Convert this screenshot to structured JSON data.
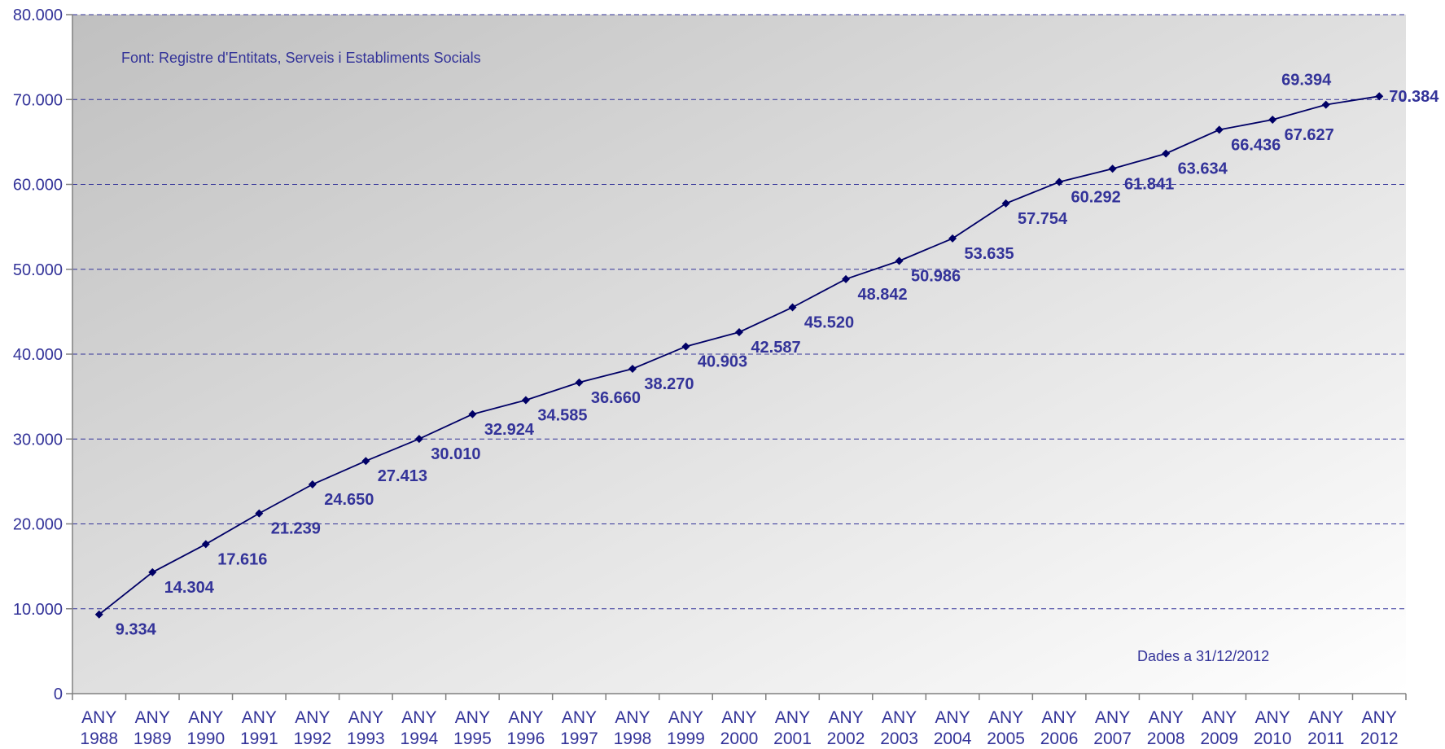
{
  "chart_data": {
    "type": "line",
    "source_note": "Font: Registre d'Entitats, Serveis i Establiments Socials",
    "date_note": "Dades a 31/12/2012",
    "categories": [
      [
        "ANY",
        "1988"
      ],
      [
        "ANY",
        "1989"
      ],
      [
        "ANY",
        "1990"
      ],
      [
        "ANY",
        "1991"
      ],
      [
        "ANY",
        "1992"
      ],
      [
        "ANY",
        "1993"
      ],
      [
        "ANY",
        "1994"
      ],
      [
        "ANY",
        "1995"
      ],
      [
        "ANY",
        "1996"
      ],
      [
        "ANY",
        "1997"
      ],
      [
        "ANY",
        "1998"
      ],
      [
        "ANY",
        "1999"
      ],
      [
        "ANY",
        "2000"
      ],
      [
        "ANY",
        "2001"
      ],
      [
        "ANY",
        "2002"
      ],
      [
        "ANY",
        "2003"
      ],
      [
        "ANY",
        "2004"
      ],
      [
        "ANY",
        "2005"
      ],
      [
        "ANY",
        "2006"
      ],
      [
        "ANY",
        "2007"
      ],
      [
        "ANY",
        "2008"
      ],
      [
        "ANY",
        "2009"
      ],
      [
        "ANY",
        "2010"
      ],
      [
        "ANY",
        "2011"
      ],
      [
        "ANY",
        "2012"
      ]
    ],
    "values": [
      9334,
      14304,
      17616,
      21239,
      24650,
      27413,
      30010,
      32924,
      34585,
      36660,
      38270,
      40903,
      42587,
      45520,
      48842,
      50986,
      53635,
      57754,
      60292,
      61841,
      63634,
      66436,
      67627,
      69394,
      70384
    ],
    "value_labels": [
      "9.334",
      "14.304",
      "17.616",
      "21.239",
      "24.650",
      "27.413",
      "30.010",
      "32.924",
      "34.585",
      "36.660",
      "38.270",
      "40.903",
      "42.587",
      "45.520",
      "48.842",
      "50.986",
      "53.635",
      "57.754",
      "60.292",
      "61.841",
      "63.634",
      "66.436",
      "67.627",
      "69.394",
      "70.384"
    ],
    "y_ticks": [
      0,
      10000,
      20000,
      30000,
      40000,
      50000,
      60000,
      70000,
      80000
    ],
    "y_tick_labels": [
      "0",
      "10.000",
      "20.000",
      "30.000",
      "40.000",
      "50.000",
      "60.000",
      "70.000",
      "80.000"
    ],
    "ylim": [
      0,
      80000
    ],
    "grid": true,
    "colors": {
      "line": "#000066",
      "text": "#333399",
      "grid": "#333399",
      "axis": "#808080",
      "bg_dark": "#c0c0c0",
      "bg_light": "#ffffff"
    }
  }
}
